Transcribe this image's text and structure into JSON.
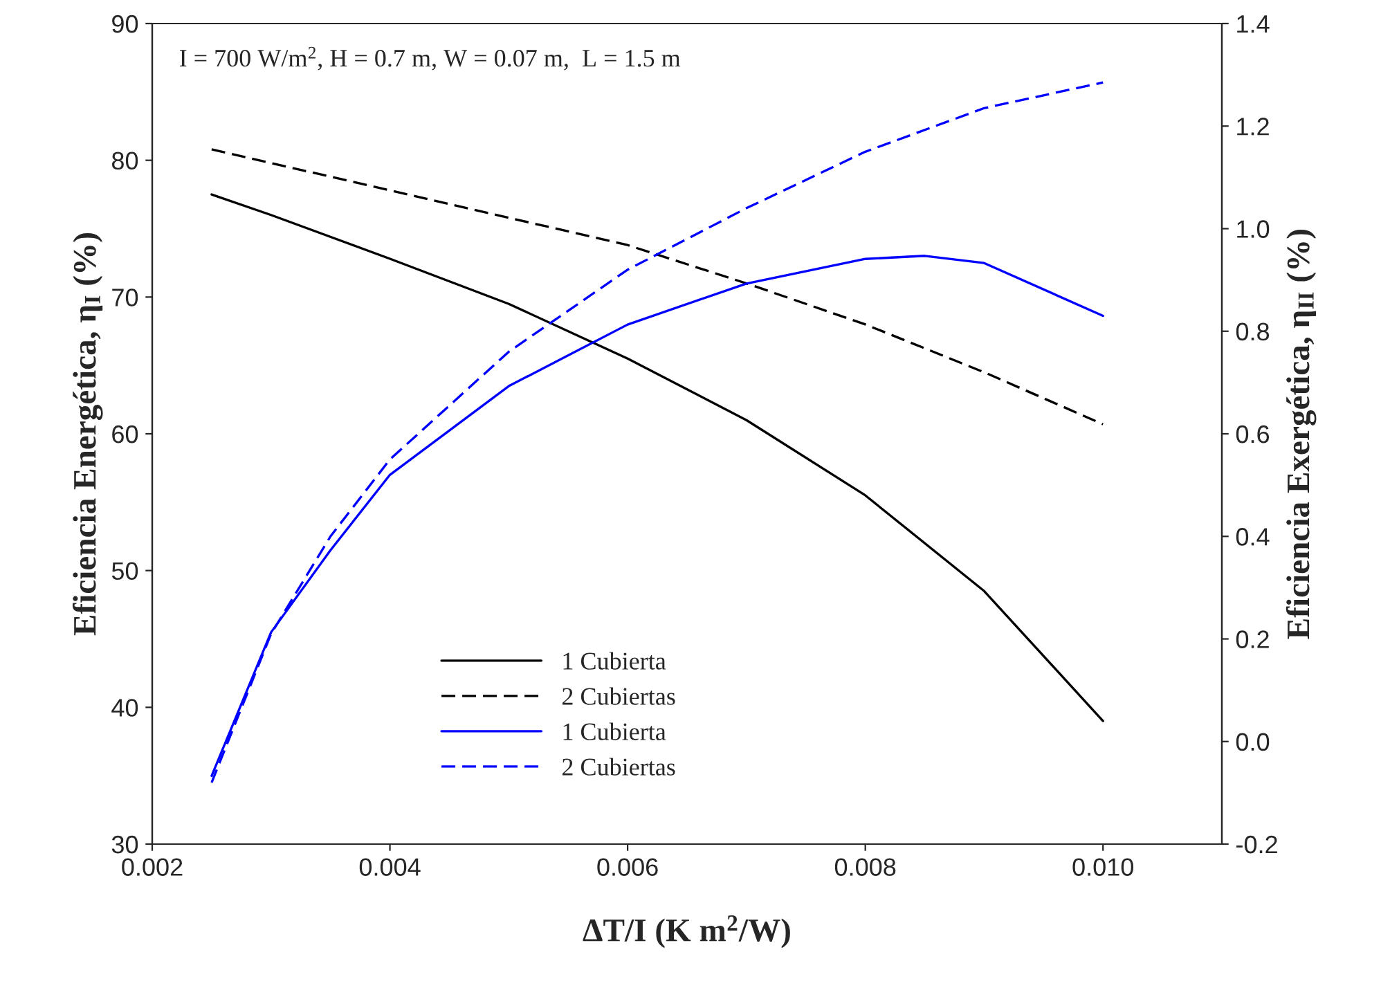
{
  "chart_data": {
    "type": "line",
    "xlabel": "ΔT/I (K m$^{2}$/W)",
    "ylabel": "Eficiencia Energética, η$_{I}$ (%)",
    "y2label": "Eficiencia Exergética, η$_{II}$ (%)",
    "annotations": [
      "I = 700 W/m$^{2}$, H = 0.7 m, W = 0.07 m,  L = 1.5 m"
    ],
    "xlim": [
      0.002,
      0.011
    ],
    "xticks": [
      {
        "value": 0.002,
        "label": "0.002"
      },
      {
        "value": 0.004,
        "label": "0.004"
      },
      {
        "value": 0.006,
        "label": "0.006"
      },
      {
        "value": 0.008,
        "label": "0.008"
      },
      {
        "value": 0.01,
        "label": "0.010"
      }
    ],
    "ylim": [
      30,
      90
    ],
    "yticks": [
      30,
      40,
      50,
      60,
      70,
      80,
      90
    ],
    "y2lim": [
      -0.2,
      1.4
    ],
    "y2ticks": [
      -0.2,
      {
        "value": 0,
        "label": "0.0"
      },
      0.2,
      0.4,
      0.6,
      0.8,
      {
        "value": 1.0,
        "label": "1.0"
      },
      1.2,
      1.4
    ],
    "grid": false,
    "legend": "bottom",
    "marker": "none",
    "series": [
      {
        "name": "1 Cubierta",
        "color": "#000000",
        "line_style": "solid",
        "x": [
          0.0025,
          0.003,
          0.004,
          0.005,
          0.006,
          0.007,
          0.008,
          0.009,
          0.01
        ],
        "values": [
          77.5,
          76,
          72.8,
          69.5,
          65.5,
          61,
          55.5,
          48.5,
          39
        ]
      },
      {
        "name": "2 Cubiertas",
        "color": "#000000",
        "line_style": "dashed",
        "x": [
          0.0025,
          0.003,
          0.004,
          0.005,
          0.006,
          0.007,
          0.008,
          0.009,
          0.01
        ],
        "values": [
          80.8,
          79.8,
          77.8,
          75.8,
          73.8,
          71,
          68,
          64.5,
          60.7
        ]
      },
      {
        "name": "1 Cubierta",
        "color": "#0000ff",
        "line_style": "solid",
        "axis": "y2",
        "x": [
          0.0025,
          0.003,
          0.0035,
          0.004,
          0.005,
          0.006,
          0.007,
          0.008,
          0.0085,
          0.009,
          0.01
        ],
        "values": [
          -0.067,
          0.213,
          0.373,
          0.52,
          0.693,
          0.813,
          0.893,
          0.941,
          0.947,
          0.933,
          0.83
        ]
      },
      {
        "name": "2 Cubiertas",
        "color": "#0000ff",
        "line_style": "dashed",
        "axis": "y2",
        "x": [
          0.0025,
          0.003,
          0.0035,
          0.004,
          0.005,
          0.006,
          0.007,
          0.008,
          0.009,
          0.01
        ],
        "values": [
          -0.08,
          0.21,
          0.4,
          0.55,
          0.76,
          0.92,
          1.04,
          1.15,
          1.235,
          1.285
        ]
      }
    ]
  }
}
